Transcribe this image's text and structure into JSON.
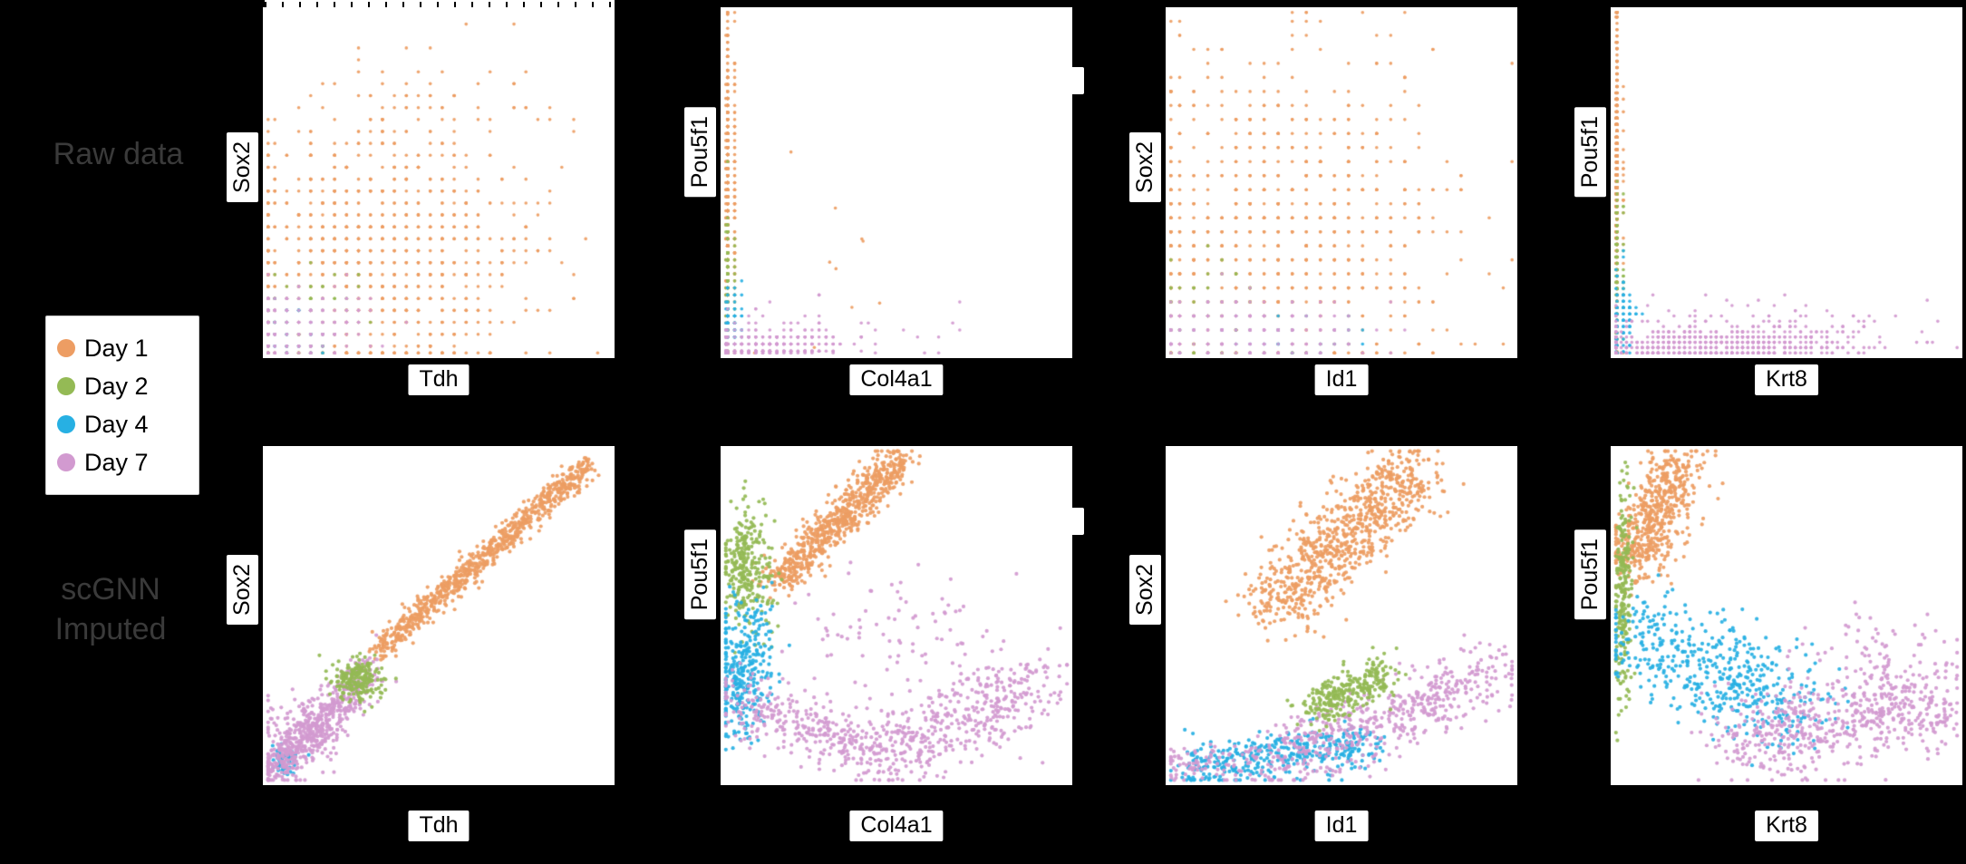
{
  "figure": {
    "background": "#000000",
    "row_label_color": "#3a3a3a"
  },
  "rows": [
    {
      "label": "Raw data"
    },
    {
      "label": "scGNN Imputed"
    }
  ],
  "legend": {
    "position": "outside-left",
    "items": [
      {
        "label": "Day 1",
        "color": "#ED9D63"
      },
      {
        "label": "Day 2",
        "color": "#94BA55"
      },
      {
        "label": "Day 4",
        "color": "#27B0E3"
      },
      {
        "label": "Day 7",
        "color": "#D29AD0"
      }
    ]
  },
  "chart_data": [
    {
      "type": "scatter",
      "row": "Raw data",
      "xlabel": "Tdh",
      "ylabel": "Sox2",
      "grid": false,
      "axis_ticks": "none visible",
      "xlim": [
        0,
        1
      ],
      "ylim": [
        0,
        1
      ],
      "marker_radius": 1.8,
      "clusters": [
        {
          "day": "Day 1",
          "n": 900,
          "shape": "blob",
          "cx": 0.3,
          "cy": 0.28,
          "sx": 0.22,
          "sy": 0.2,
          "q": 0.034
        },
        {
          "day": "Day 1",
          "n": 90,
          "shape": "blob",
          "cx": 0.45,
          "cy": 0.62,
          "sx": 0.22,
          "sy": 0.18,
          "q": 0.034
        },
        {
          "day": "Day 2",
          "n": 70,
          "shape": "blob",
          "cx": 0.1,
          "cy": 0.12,
          "sx": 0.08,
          "sy": 0.08,
          "q": 0.034
        },
        {
          "day": "Day 4",
          "n": 50,
          "shape": "blob",
          "cx": 0.07,
          "cy": 0.07,
          "sx": 0.05,
          "sy": 0.05,
          "q": 0.034
        },
        {
          "day": "Day 7",
          "n": 170,
          "shape": "blob",
          "cx": 0.12,
          "cy": 0.09,
          "sx": 0.11,
          "sy": 0.06,
          "q": 0.034
        }
      ]
    },
    {
      "type": "scatter",
      "row": "Raw data",
      "xlabel": "Col4a1",
      "ylabel": "Pou5f1",
      "grid": false,
      "axis_ticks": "none visible",
      "xlim": [
        0,
        1
      ],
      "ylim": [
        0,
        1
      ],
      "marker_radius": 1.8,
      "clusters": [
        {
          "day": "Day 1",
          "n": 620,
          "shape": "blob",
          "cx": 0.022,
          "cy": 0.45,
          "sx": 0.008,
          "sy": 0.22,
          "q": 0.02
        },
        {
          "day": "Day 1",
          "n": 10,
          "shape": "blob",
          "cx": 0.25,
          "cy": 0.3,
          "sx": 0.15,
          "sy": 0.15
        },
        {
          "day": "Day 2",
          "n": 90,
          "shape": "blob",
          "cx": 0.022,
          "cy": 0.22,
          "sx": 0.008,
          "sy": 0.1,
          "q": 0.02
        },
        {
          "day": "Day 4",
          "n": 70,
          "shape": "blob",
          "cx": 0.03,
          "cy": 0.1,
          "sx": 0.015,
          "sy": 0.05,
          "q": 0.02
        },
        {
          "day": "Day 7",
          "n": 360,
          "shape": "blob",
          "cx": 0.1,
          "cy": 0.035,
          "sx": 0.1,
          "sy": 0.02,
          "q": 0.02
        },
        {
          "day": "Day 7",
          "n": 60,
          "shape": "blob",
          "cx": 0.28,
          "cy": 0.07,
          "sx": 0.18,
          "sy": 0.05,
          "q": 0.02
        }
      ]
    },
    {
      "type": "scatter",
      "row": "Raw data",
      "xlabel": "Id1",
      "ylabel": "Sox2",
      "grid": false,
      "axis_ticks": "none visible",
      "xlim": [
        0,
        1
      ],
      "ylim": [
        0,
        1
      ],
      "marker_radius": 1.8,
      "clusters": [
        {
          "day": "Day 1",
          "n": 820,
          "shape": "blob",
          "cx": 0.32,
          "cy": 0.33,
          "sx": 0.24,
          "sy": 0.22,
          "q": 0.04
        },
        {
          "day": "Day 1",
          "n": 70,
          "shape": "blob",
          "cx": 0.45,
          "cy": 0.72,
          "sx": 0.25,
          "sy": 0.14,
          "q": 0.04
        },
        {
          "day": "Day 2",
          "n": 60,
          "shape": "blob",
          "cx": 0.14,
          "cy": 0.14,
          "sx": 0.1,
          "sy": 0.09,
          "q": 0.04
        },
        {
          "day": "Day 4",
          "n": 40,
          "shape": "blob",
          "cx": 0.25,
          "cy": 0.06,
          "sx": 0.18,
          "sy": 0.04,
          "q": 0.04
        },
        {
          "day": "Day 7",
          "n": 190,
          "shape": "blob",
          "cx": 0.2,
          "cy": 0.08,
          "sx": 0.16,
          "sy": 0.05,
          "q": 0.04
        }
      ]
    },
    {
      "type": "scatter",
      "row": "Raw data",
      "xlabel": "Krt8",
      "ylabel": "Pou5f1",
      "grid": false,
      "axis_ticks": "none visible",
      "xlim": [
        0,
        1
      ],
      "ylim": [
        0,
        1
      ],
      "marker_radius": 1.8,
      "clusters": [
        {
          "day": "Day 1",
          "n": 560,
          "shape": "blob",
          "cx": 0.016,
          "cy": 0.5,
          "sx": 0.006,
          "sy": 0.24,
          "q": 0.018
        },
        {
          "day": "Day 2",
          "n": 80,
          "shape": "blob",
          "cx": 0.02,
          "cy": 0.26,
          "sx": 0.008,
          "sy": 0.1,
          "q": 0.018
        },
        {
          "day": "Day 4",
          "n": 90,
          "shape": "blob",
          "cx": 0.035,
          "cy": 0.12,
          "sx": 0.02,
          "sy": 0.06,
          "q": 0.018
        },
        {
          "day": "Day 7",
          "n": 620,
          "shape": "blob",
          "cx": 0.28,
          "cy": 0.04,
          "sx": 0.22,
          "sy": 0.025,
          "q": 0.015
        },
        {
          "day": "Day 7",
          "n": 90,
          "shape": "blob",
          "cx": 0.45,
          "cy": 0.1,
          "sx": 0.25,
          "sy": 0.04,
          "q": 0.015
        }
      ]
    },
    {
      "type": "scatter",
      "row": "scGNN Imputed",
      "xlabel": "Tdh",
      "ylabel": "Sox2",
      "grid": false,
      "axis_ticks": "none visible",
      "xlim": [
        0,
        1
      ],
      "ylim": [
        0,
        1
      ],
      "marker_radius": 2.1,
      "clusters": [
        {
          "day": "Day 1",
          "n": 820,
          "shape": "band",
          "x0": 0.33,
          "y0": 0.4,
          "x1": 0.93,
          "y1": 0.95,
          "noise": 0.018
        },
        {
          "day": "Day 4",
          "n": 60,
          "shape": "blob",
          "cx": 0.06,
          "cy": 0.07,
          "sx": 0.02,
          "sy": 0.02
        },
        {
          "day": "Day 7",
          "n": 560,
          "shape": "band",
          "x0": 0.02,
          "y0": 0.03,
          "x1": 0.3,
          "y1": 0.34,
          "noise": 0.03
        },
        {
          "day": "Day 7",
          "n": 130,
          "shape": "blob",
          "cx": 0.12,
          "cy": 0.16,
          "sx": 0.06,
          "sy": 0.06
        },
        {
          "day": "Day 2",
          "n": 210,
          "shape": "blob",
          "cx": 0.27,
          "cy": 0.31,
          "sx": 0.032,
          "sy": 0.032
        }
      ]
    },
    {
      "type": "scatter",
      "row": "scGNN Imputed",
      "xlabel": "Col4a1",
      "ylabel": "Pou5f1",
      "grid": false,
      "axis_ticks": "none visible",
      "xlim": [
        0,
        1
      ],
      "ylim": [
        0,
        1
      ],
      "marker_radius": 2.1,
      "clusters": [
        {
          "day": "Day 1",
          "n": 720,
          "shape": "band",
          "x0": 0.16,
          "y0": 0.6,
          "x1": 0.52,
          "y1": 0.97,
          "noise": 0.028
        },
        {
          "day": "Day 2",
          "n": 290,
          "shape": "blob",
          "cx": 0.07,
          "cy": 0.64,
          "sx": 0.04,
          "sy": 0.09
        },
        {
          "day": "Day 4",
          "n": 330,
          "shape": "blob",
          "cx": 0.06,
          "cy": 0.34,
          "sx": 0.045,
          "sy": 0.1
        },
        {
          "day": "Day 7",
          "n": 310,
          "shape": "band",
          "x0": 0.04,
          "y0": 0.26,
          "x1": 0.45,
          "y1": 0.09,
          "noise": 0.05
        },
        {
          "day": "Day 7",
          "n": 430,
          "shape": "band",
          "x0": 0.45,
          "y0": 0.09,
          "x1": 0.93,
          "y1": 0.3,
          "noise": 0.06
        },
        {
          "day": "Day 7",
          "n": 80,
          "shape": "blob",
          "cx": 0.5,
          "cy": 0.45,
          "sx": 0.15,
          "sy": 0.1
        }
      ]
    },
    {
      "type": "scatter",
      "row": "scGNN Imputed",
      "xlabel": "Id1",
      "ylabel": "Sox2",
      "grid": false,
      "axis_ticks": "none visible",
      "xlim": [
        0,
        1
      ],
      "ylim": [
        0,
        1
      ],
      "marker_radius": 2.1,
      "clusters": [
        {
          "day": "Day 1",
          "n": 820,
          "shape": "band",
          "x0": 0.3,
          "y0": 0.52,
          "x1": 0.72,
          "y1": 0.93,
          "noise": 0.055
        },
        {
          "day": "Day 4",
          "n": 390,
          "shape": "band",
          "x0": 0.06,
          "y0": 0.05,
          "x1": 0.58,
          "y1": 0.13,
          "noise": 0.035
        },
        {
          "day": "Day 7",
          "n": 520,
          "shape": "band",
          "x0": 0.3,
          "y0": 0.07,
          "x1": 0.94,
          "y1": 0.33,
          "noise": 0.05
        },
        {
          "day": "Day 7",
          "n": 90,
          "shape": "blob",
          "cx": 0.12,
          "cy": 0.06,
          "sx": 0.08,
          "sy": 0.03
        },
        {
          "day": "Day 2",
          "n": 290,
          "shape": "band",
          "x0": 0.42,
          "y0": 0.22,
          "x1": 0.62,
          "y1": 0.33,
          "noise": 0.03
        }
      ]
    },
    {
      "type": "scatter",
      "row": "scGNN Imputed",
      "xlabel": "Krt8",
      "ylabel": "Pou5f1",
      "grid": false,
      "axis_ticks": "none visible",
      "xlim": [
        0,
        1
      ],
      "ylim": [
        0,
        1
      ],
      "marker_radius": 2.1,
      "clusters": [
        {
          "day": "Day 1",
          "n": 560,
          "shape": "band",
          "x0": 0.06,
          "y0": 0.65,
          "x1": 0.2,
          "y1": 0.95,
          "noise": 0.045
        },
        {
          "day": "Day 2",
          "n": 230,
          "shape": "blob",
          "cx": 0.035,
          "cy": 0.55,
          "sx": 0.012,
          "sy": 0.16
        },
        {
          "day": "Day 4",
          "n": 490,
          "shape": "band",
          "x0": 0.05,
          "y0": 0.45,
          "x1": 0.55,
          "y1": 0.22,
          "noise": 0.07
        },
        {
          "day": "Day 7",
          "n": 540,
          "shape": "band",
          "x0": 0.35,
          "y0": 0.12,
          "x1": 0.95,
          "y1": 0.25,
          "noise": 0.06
        },
        {
          "day": "Day 7",
          "n": 110,
          "shape": "blob",
          "cx": 0.75,
          "cy": 0.35,
          "sx": 0.12,
          "sy": 0.08
        }
      ]
    }
  ]
}
